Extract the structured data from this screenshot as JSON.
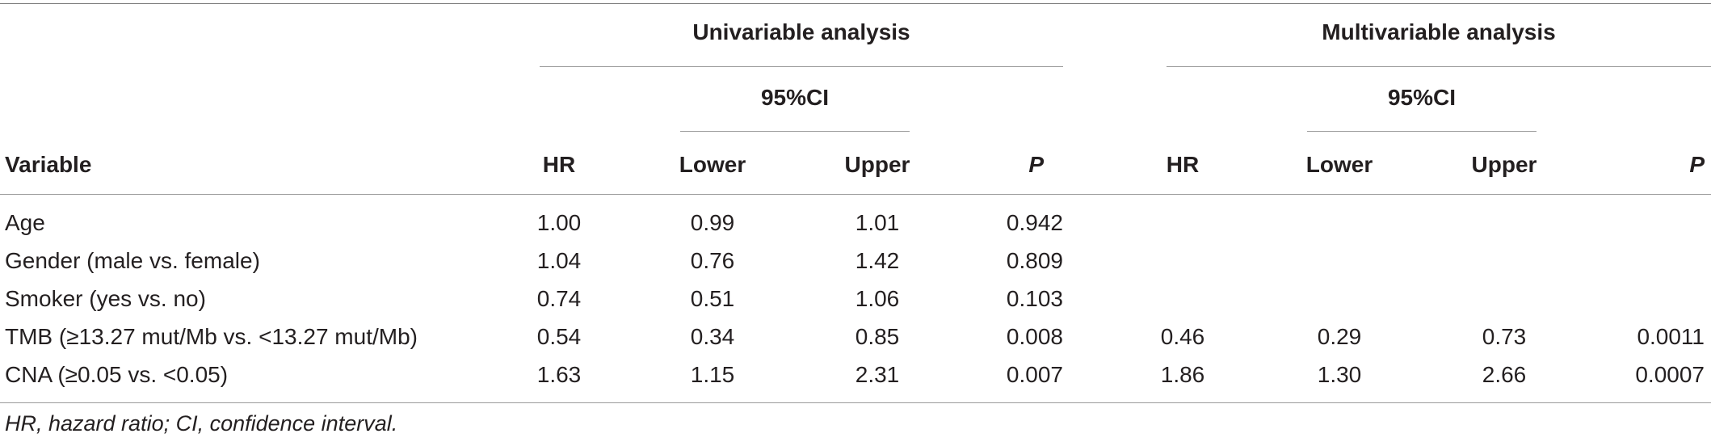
{
  "table": {
    "group_headers": {
      "univariable": "Univariable analysis",
      "multivariable": "Multivariable analysis"
    },
    "ci_label": "95%CI",
    "columns": {
      "variable": "Variable",
      "hr": "HR",
      "lower": "Lower",
      "upper": "Upper",
      "p": "P"
    },
    "rows": [
      {
        "variable": "Age",
        "uni": [
          "1.00",
          "0.99",
          "1.01",
          "0.942"
        ],
        "multi": [
          "",
          "",
          "",
          ""
        ]
      },
      {
        "variable": "Gender (male vs. female)",
        "uni": [
          "1.04",
          "0.76",
          "1.42",
          "0.809"
        ],
        "multi": [
          "",
          "",
          "",
          ""
        ]
      },
      {
        "variable": "Smoker (yes vs. no)",
        "uni": [
          "0.74",
          "0.51",
          "1.06",
          "0.103"
        ],
        "multi": [
          "",
          "",
          "",
          ""
        ]
      },
      {
        "variable": "TMB (≥13.27 mut/Mb vs. <13.27 mut/Mb)",
        "uni": [
          "0.54",
          "0.34",
          "0.85",
          "0.008"
        ],
        "multi": [
          "0.46",
          "0.29",
          "0.73",
          "0.0011"
        ]
      },
      {
        "variable": "CNA (≥0.05 vs. <0.05)",
        "uni": [
          "1.63",
          "1.15",
          "2.31",
          "0.007"
        ],
        "multi": [
          "1.86",
          "1.30",
          "2.66",
          "0.0007"
        ]
      }
    ],
    "footnote": "HR, hazard ratio; CI, confidence interval."
  }
}
